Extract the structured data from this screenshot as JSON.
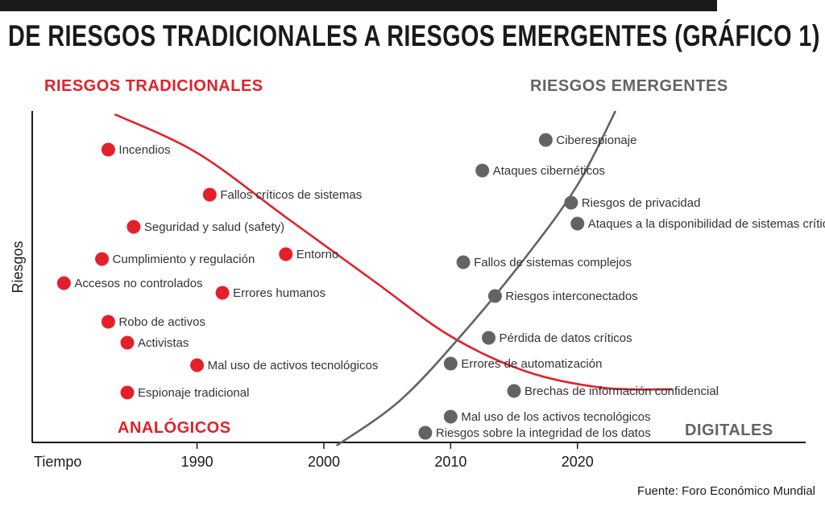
{
  "title": "DE RIESGOS TRADICIONALES A RIESGOS EMERGENTES (GRÁFICO 1)",
  "source": "Fuente: Foro Económico Mundial",
  "colors": {
    "traditional": "#e3202a",
    "emerging": "#636366",
    "axis": "#1a1a1a"
  },
  "chart_data": {
    "type": "scatter",
    "title": "DE RIESGOS TRADICIONALES A RIESGOS EMERGENTES (GRÁFICO 1)",
    "xlabel": "Tiempo",
    "ylabel": "Riesgos",
    "x_ticks": [
      "1990",
      "2000",
      "2010",
      "2020"
    ],
    "xlim": [
      1977,
      2038
    ],
    "ylim": [
      0,
      100
    ],
    "grid": false,
    "annotations": {
      "traditional_header": "RIESGOS TRADICIONALES",
      "emerging_header": "RIESGOS EMERGENTES",
      "analog": "ANALÓGICOS",
      "digital": "DIGITALES"
    },
    "series": [
      {
        "name": "RIESGOS TRADICIONALES",
        "color": "#e3202a",
        "points": [
          {
            "label": "Incendios",
            "x": 1983,
            "y": 91
          },
          {
            "label": "Fallos críticos de sistemas",
            "x": 1991,
            "y": 77
          },
          {
            "label": "Seguridad y salud (safety)",
            "x": 1985,
            "y": 67
          },
          {
            "label": "Cumplimiento y regulación",
            "x": 1982.5,
            "y": 57
          },
          {
            "label": "Entorno",
            "x": 1997,
            "y": 58.5
          },
          {
            "label": "Accesos no controlados",
            "x": 1979.5,
            "y": 49.5
          },
          {
            "label": "Errores humanos",
            "x": 1992,
            "y": 46.5
          },
          {
            "label": "Robo de activos",
            "x": 1983,
            "y": 37.5
          },
          {
            "label": "Activistas",
            "x": 1984.5,
            "y": 31
          },
          {
            "label": "Mal uso de activos tecnológicos",
            "x": 1990,
            "y": 24
          },
          {
            "label": "Espionaje tradicional",
            "x": 1984.5,
            "y": 15.5
          }
        ]
      },
      {
        "name": "RIESGOS EMERGENTES",
        "color": "#636366",
        "points": [
          {
            "label": "Ciberespionaje",
            "x": 2017.5,
            "y": 94
          },
          {
            "label": "Ataques cibernéticos",
            "x": 2012.5,
            "y": 84.5
          },
          {
            "label": "Riesgos de privacidad",
            "x": 2019.5,
            "y": 74.5
          },
          {
            "label": "Ataques a la disponibilidad de sistemas críticos",
            "x": 2020,
            "y": 68
          },
          {
            "label": "Fallos de sistemas complejos",
            "x": 2011,
            "y": 56
          },
          {
            "label": "Riesgos interconectados",
            "x": 2013.5,
            "y": 45.5
          },
          {
            "label": "Pérdida de datos críticos",
            "x": 2013,
            "y": 32.5
          },
          {
            "label": "Errores de automatización",
            "x": 2010,
            "y": 24.5
          },
          {
            "label": "Brechas de información confidencial",
            "x": 2015,
            "y": 16
          },
          {
            "label": "Mal uso de los activos tecnológicos",
            "x": 2010,
            "y": 8
          },
          {
            "label": "Riesgos sobre la integridad de los datos",
            "x": 2008,
            "y": 3
          }
        ]
      }
    ],
    "trend_lines": [
      {
        "name": "tradicional",
        "color": "#e3202a",
        "points": [
          [
            1983.5,
            102
          ],
          [
            1990,
            90
          ],
          [
            1997,
            70
          ],
          [
            2004,
            50
          ],
          [
            2010,
            33
          ],
          [
            2016,
            22
          ],
          [
            2022,
            17
          ],
          [
            2027.5,
            16.5
          ]
        ]
      },
      {
        "name": "emergente",
        "color": "#636366",
        "points": [
          [
            2001,
            -1
          ],
          [
            2006,
            13
          ],
          [
            2011,
            34
          ],
          [
            2016,
            58
          ],
          [
            2020,
            80
          ],
          [
            2023,
            103
          ]
        ]
      }
    ]
  }
}
